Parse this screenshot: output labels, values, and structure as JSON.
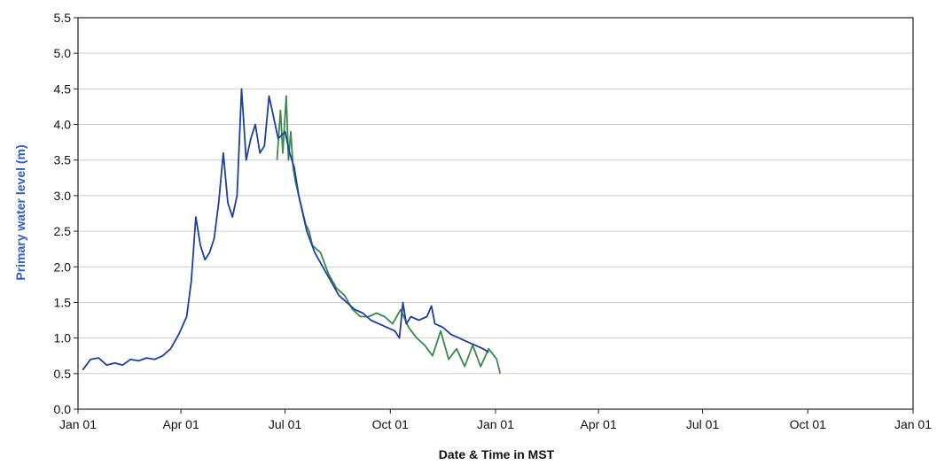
{
  "chart_data": {
    "type": "line",
    "title": "",
    "xlabel": "Date & Time in MST",
    "ylabel": "Primary water level (m)",
    "grid": true,
    "x_ticks": [
      "Jan 01",
      "Apr 01",
      "Jul 01",
      "Oct 01",
      "Jan 01",
      "Apr 01",
      "Jul 01",
      "Oct 01",
      "Jan 01"
    ],
    "y_ticks": [
      "0.0",
      "0.5",
      "1.0",
      "1.5",
      "2.0",
      "2.5",
      "3.0",
      "3.5",
      "4.0",
      "4.5",
      "5.0",
      "5.5"
    ],
    "ylim": [
      0,
      5.5
    ],
    "xlim": [
      "Jan 01",
      "Jan 01 (+2 yr)"
    ],
    "series": [
      {
        "color": "#3a8a4a",
        "x": [
          "Jun 24",
          "Jun 27",
          "Jun 29",
          "Jul 02",
          "Jul 04",
          "Jul 06",
          "Jul 08",
          "Jul 10",
          "Jul 13",
          "Jul 16",
          "Jul 19",
          "Jul 22",
          "Jul 25",
          "Aug 01",
          "Aug 08",
          "Aug 15",
          "Aug 22",
          "Aug 29",
          "Sep 05",
          "Sep 12",
          "Sep 19",
          "Sep 26",
          "Oct 03",
          "Oct 10",
          "Oct 17",
          "Oct 24",
          "Oct 31",
          "Nov 07",
          "Nov 14",
          "Nov 21",
          "Nov 28",
          "Dec 05",
          "Dec 12",
          "Dec 19",
          "Dec 26",
          "Jan 02",
          "Jan 05"
        ],
        "y": [
          3.5,
          4.2,
          3.6,
          4.4,
          3.5,
          3.9,
          3.4,
          3.2,
          3.0,
          2.8,
          2.6,
          2.5,
          2.3,
          2.2,
          1.9,
          1.7,
          1.6,
          1.4,
          1.3,
          1.3,
          1.35,
          1.3,
          1.2,
          1.4,
          1.15,
          1.0,
          0.9,
          0.75,
          1.1,
          0.7,
          0.85,
          0.6,
          0.9,
          0.6,
          0.85,
          0.7,
          0.5
        ]
      },
      {
        "color": "#1f3fa0",
        "x": [
          "Jan 05",
          "Jan 12",
          "Jan 19",
          "Jan 26",
          "Feb 02",
          "Feb 09",
          "Feb 16",
          "Feb 23",
          "Mar 02",
          "Mar 09",
          "Mar 16",
          "Mar 23",
          "Mar 30",
          "Apr 06",
          "Apr 10",
          "Apr 14",
          "Apr 18",
          "Apr 22",
          "Apr 26",
          "Apr 30",
          "May 04",
          "May 08",
          "May 12",
          "May 16",
          "May 20",
          "May 24",
          "May 28",
          "Jun 01",
          "Jun 05",
          "Jun 09",
          "Jun 13",
          "Jun 17",
          "Jun 21",
          "Jun 25",
          "Jul 01",
          "Jul 05",
          "Jul 09",
          "Jul 13",
          "Jul 20",
          "Jul 27",
          "Aug 03",
          "Aug 10",
          "Aug 17",
          "Aug 24",
          "Aug 31",
          "Sep 07",
          "Sep 14",
          "Sep 21",
          "Sep 28",
          "Oct 05",
          "Oct 09",
          "Oct 12",
          "Oct 15",
          "Oct 19",
          "Oct 26",
          "Nov 02",
          "Nov 06",
          "Nov 09",
          "Nov 16",
          "Nov 23",
          "Nov 30",
          "Dec 07",
          "Dec 14",
          "Dec 21",
          "Dec 26"
        ],
        "y": [
          0.55,
          0.7,
          0.72,
          0.62,
          0.65,
          0.62,
          0.7,
          0.68,
          0.72,
          0.7,
          0.75,
          0.85,
          1.05,
          1.3,
          1.8,
          2.7,
          2.3,
          2.1,
          2.2,
          2.4,
          2.9,
          3.6,
          2.9,
          2.7,
          3.0,
          4.5,
          3.5,
          3.8,
          4.0,
          3.6,
          3.7,
          4.4,
          4.1,
          3.8,
          3.9,
          3.6,
          3.4,
          3.0,
          2.5,
          2.2,
          2.0,
          1.8,
          1.6,
          1.5,
          1.4,
          1.35,
          1.25,
          1.2,
          1.15,
          1.1,
          1.0,
          1.5,
          1.2,
          1.3,
          1.25,
          1.3,
          1.45,
          1.2,
          1.15,
          1.05,
          1.0,
          0.95,
          0.9,
          0.85,
          0.8
        ]
      }
    ]
  }
}
